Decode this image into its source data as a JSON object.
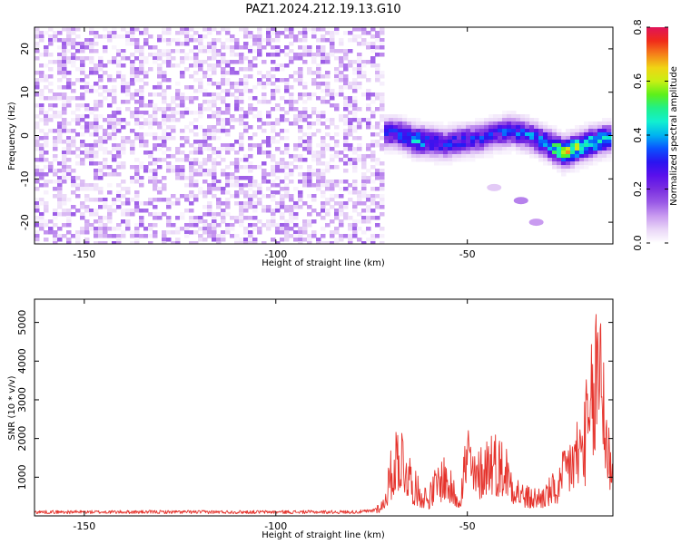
{
  "colors": {
    "line": "#e5322b",
    "colormap": [
      "#ffffff",
      "#e9d6f7",
      "#c99bf0",
      "#9a5ae6",
      "#7a2ee0",
      "#5a10ec",
      "#2a14f0",
      "#0a52ff",
      "#00b4f0",
      "#12f0d0",
      "#20f08a",
      "#5cf01a",
      "#c8f014",
      "#f0d414",
      "#f5801a",
      "#f02a1a",
      "#e0145a"
    ]
  },
  "chart_data": [
    {
      "type": "heatmap",
      "title": "PAZ1.2024.212.19.13.G10",
      "xlabel": "Height of straight line (km)",
      "ylabel": "Frequency (Hz)",
      "xlim": [
        -163,
        -12
      ],
      "ylim": [
        -25,
        25
      ],
      "xticks": [
        -150,
        -100,
        -50
      ],
      "yticks": [
        20,
        10,
        0,
        -10,
        -20
      ],
      "colorbar": {
        "label": "Normalized spectral amplitude",
        "range": [
          0.0,
          0.8
        ],
        "ticks": [
          "0.8",
          "0.6",
          "0.4",
          "0.2",
          "0.0"
        ]
      },
      "noise_region": {
        "x": [
          -163,
          -72
        ],
        "y": [
          -25,
          25
        ],
        "amplitude": [
          0.0,
          0.15
        ]
      },
      "signal_ridge": [
        {
          "x": -72,
          "freq": 0.5,
          "amp": 0.3
        },
        {
          "x": -68,
          "freq": 0.5,
          "amp": 0.35
        },
        {
          "x": -64,
          "freq": -1.0,
          "amp": 0.45
        },
        {
          "x": -60,
          "freq": -1.5,
          "amp": 0.35
        },
        {
          "x": -56,
          "freq": -2.0,
          "amp": 0.3
        },
        {
          "x": -50,
          "freq": -1.0,
          "amp": 0.3
        },
        {
          "x": -46,
          "freq": -0.5,
          "amp": 0.3
        },
        {
          "x": -42,
          "freq": 0.5,
          "amp": 0.3
        },
        {
          "x": -38,
          "freq": 1.0,
          "amp": 0.35
        },
        {
          "x": -34,
          "freq": 0.0,
          "amp": 0.35
        },
        {
          "x": -30,
          "freq": -1.5,
          "amp": 0.4
        },
        {
          "x": -25,
          "freq": -4.0,
          "amp": 0.6
        },
        {
          "x": -20,
          "freq": -2.5,
          "amp": 0.55
        },
        {
          "x": -15,
          "freq": -1.0,
          "amp": 0.45
        },
        {
          "x": -12,
          "freq": -0.5,
          "amp": 0.35
        }
      ]
    },
    {
      "type": "line",
      "xlabel": "Height of straight line (km)",
      "ylabel": "SNR (10 * v/v)",
      "xlim": [
        -163,
        -12
      ],
      "ylim": [
        0,
        5600
      ],
      "xticks": [
        -150,
        -100,
        -50
      ],
      "yticks": [
        1000,
        2000,
        3000,
        4000,
        5000
      ],
      "series": [
        {
          "x": [
            -163,
            -150,
            -130,
            -110,
            -90,
            -80,
            -75,
            -72,
            -70,
            -68,
            -66,
            -64,
            -62,
            -60,
            -58,
            -56,
            -54,
            -52,
            -50,
            -48,
            -46,
            -44,
            -42,
            -40,
            -38,
            -36,
            -34,
            -32,
            -30,
            -28,
            -26,
            -24,
            -22,
            -20,
            -18,
            -17,
            -16,
            -15,
            -14,
            -13,
            -12
          ],
          "y": [
            100,
            100,
            100,
            100,
            100,
            100,
            120,
            300,
            1100,
            1800,
            1400,
            800,
            600,
            500,
            900,
            1100,
            700,
            500,
            1800,
            1000,
            1300,
            1600,
            1400,
            1300,
            900,
            600,
            500,
            500,
            550,
            700,
            800,
            1400,
            1600,
            2000,
            2600,
            3300,
            4200,
            4800,
            2500,
            1600,
            1700
          ]
        }
      ]
    }
  ]
}
